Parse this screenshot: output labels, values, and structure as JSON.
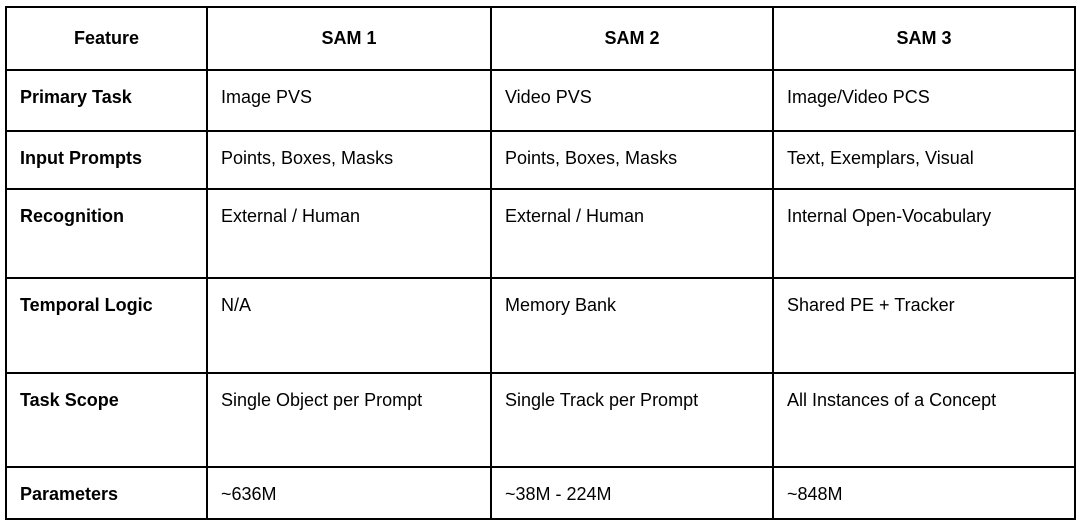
{
  "table": {
    "headers": [
      "Feature",
      "SAM 1",
      "SAM 2",
      "SAM 3"
    ],
    "rows": [
      {
        "feature": "Primary Task",
        "sam1": "Image PVS",
        "sam2": "Video PVS",
        "sam3": "Image/Video PCS"
      },
      {
        "feature": "Input Prompts",
        "sam1": "Points, Boxes, Masks",
        "sam2": "Points, Boxes, Masks",
        "sam3": "Text, Exemplars, Visual"
      },
      {
        "feature": "Recognition",
        "sam1": "External / Human",
        "sam2": "External / Human",
        "sam3": "Internal Open-Vocabulary"
      },
      {
        "feature": "Temporal Logic",
        "sam1": "N/A",
        "sam2": "Memory Bank",
        "sam3": "Shared PE + Tracker"
      },
      {
        "feature": "Task Scope",
        "sam1": "Single Object per Prompt",
        "sam2": "Single Track per Prompt",
        "sam3": "All Instances of a Concept"
      },
      {
        "feature": "Parameters",
        "sam1": "~636M",
        "sam2": "~38M - 224M",
        "sam3": "~848M"
      }
    ]
  }
}
